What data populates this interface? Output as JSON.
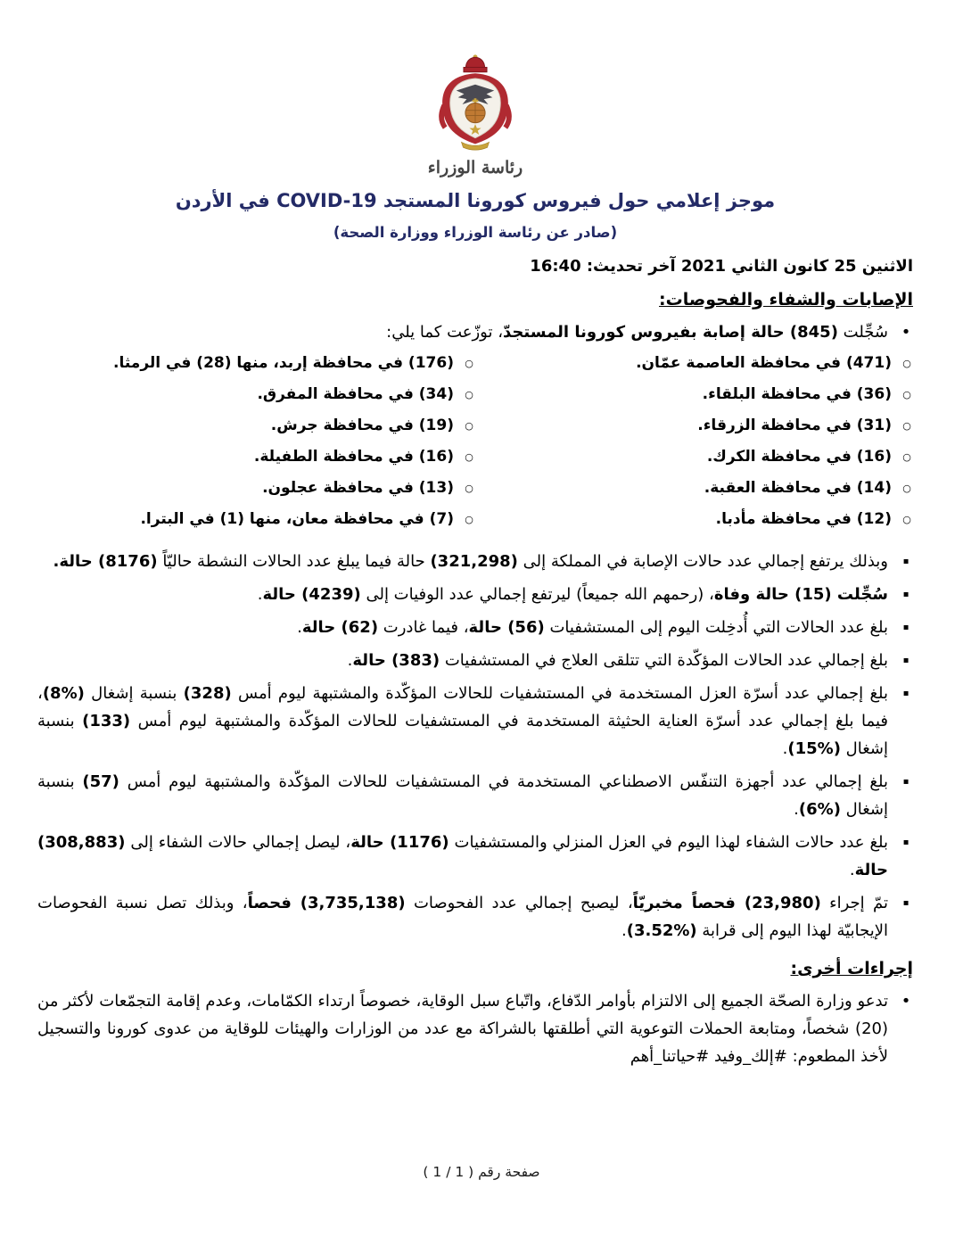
{
  "logo": {
    "icon": "jordan-coat-of-arms",
    "caption": "رئاسة الوزراء"
  },
  "header": {
    "title_segments": [
      {
        "t": "موجز إعلامي حول فيروس كورونا المستجد ",
        "b": true
      },
      {
        "t": "COVID-19",
        "b": true,
        "dir": "ltr"
      },
      {
        "t": " في الأردن",
        "b": true
      }
    ],
    "subtitle": "(صادر عن رئاسة الوزراء ووزارة الصحة)",
    "date_line": "الاثنين 25 كانون الثاني 2021 آخر تحديث: 16:40"
  },
  "sections": {
    "infections": {
      "heading": "الإصابات والشفاء والفحوصات:",
      "new_cases_intro": [
        {
          "t": "سُجِّلت ",
          "b": false
        },
        {
          "t": "(845) حالة إصابة بفيروس كورونا المستجدّ",
          "b": true
        },
        {
          "t": "، توزّعت كما يلي:",
          "b": false
        }
      ],
      "governorates_right": [
        "(471) في محافظة العاصمة عمّان.",
        "(36) في محافظة البلقاء.",
        "(31) في محافظة الزرقاء.",
        "(16) في محافظة الكرك.",
        "(14) في محافظة العقبة.",
        "(12) في محافظة مأدبا."
      ],
      "governorates_left": [
        "(176) في محافظة إربد، منها (28) في الرمثا.",
        "(34) في محافظة المفرق.",
        "(19) في محافظة جرش.",
        "(16) في محافظة الطفيلة.",
        "(13) في محافظة عجلون.",
        "(7) في محافظة معان، منها (1) في البترا."
      ],
      "bullets": [
        [
          {
            "t": "وبذلك يرتفع إجمالي عدد حالات الإصابة في المملكة إلى ",
            "b": false
          },
          {
            "t": "(321,298)",
            "b": true
          },
          {
            "t": " حالة فيما يبلغ عدد الحالات النشطة حاليّاً ",
            "b": false
          },
          {
            "t": "(8176) حالة.",
            "b": true
          }
        ],
        [
          {
            "t": "سُجِّلت (15) حالة وفاة",
            "b": true
          },
          {
            "t": "، (رحمهم الله جميعاً) ليرتفع إجمالي عدد الوفيات إلى ",
            "b": false
          },
          {
            "t": "(4239) حالة",
            "b": true
          },
          {
            "t": ".",
            "b": false
          }
        ],
        [
          {
            "t": "بلغ عدد الحالات التي أُدخِلت اليوم إلى المستشفيات ",
            "b": false
          },
          {
            "t": "(56) حالة",
            "b": true
          },
          {
            "t": "، فيما غادرت ",
            "b": false
          },
          {
            "t": "(62) حالة",
            "b": true
          },
          {
            "t": ".",
            "b": false
          }
        ],
        [
          {
            "t": "بلغ إجمالي عدد الحالات المؤكّدة التي تتلقى العلاج في المستشفيات ",
            "b": false
          },
          {
            "t": "(383) حالة",
            "b": true
          },
          {
            "t": ".",
            "b": false
          }
        ],
        [
          {
            "t": "بلغ إجمالي عدد أسرّة العزل المستخدمة في المستشفيات للحالات المؤكّدة والمشتبهة ليوم أمس ",
            "b": false
          },
          {
            "t": "(328)",
            "b": true
          },
          {
            "t": " بنسبة إشغال ",
            "b": false
          },
          {
            "t": "(%8)",
            "b": true
          },
          {
            "t": "، فيما بلغ إجمالي عدد أسرّة العناية الحثيثة المستخدمة في المستشفيات للحالات المؤكّدة والمشتبهة ليوم أمس ",
            "b": false
          },
          {
            "t": "(133)",
            "b": true
          },
          {
            "t": " بنسبة إشغال ",
            "b": false
          },
          {
            "t": "(%15)",
            "b": true
          },
          {
            "t": ".",
            "b": false
          }
        ],
        [
          {
            "t": "بلغ إجمالي عدد أجهزة التنفّس الاصطناعي المستخدمة في المستشفيات للحالات المؤكّدة والمشتبهة ليوم أمس ",
            "b": false
          },
          {
            "t": "(57)",
            "b": true
          },
          {
            "t": " بنسبة إشغال ",
            "b": false
          },
          {
            "t": "(%6)",
            "b": true
          },
          {
            "t": ".",
            "b": false
          }
        ],
        [
          {
            "t": "بلغ عدد حالات الشفاء لهذا اليوم في العزل المنزلي والمستشفيات ",
            "b": false
          },
          {
            "t": "(1176) حالة",
            "b": true
          },
          {
            "t": "، ليصل إجمالي حالات الشفاء إلى ",
            "b": false
          },
          {
            "t": "(308,883) حالة",
            "b": true
          },
          {
            "t": ".",
            "b": false
          }
        ],
        [
          {
            "t": "تمّ إجراء ",
            "b": false
          },
          {
            "t": "(23,980) فحصاً مخبريّاً",
            "b": true
          },
          {
            "t": "، ليصبح إجمالي عدد الفحوصات ",
            "b": false
          },
          {
            "t": "(3,735,138) فحصاً",
            "b": true
          },
          {
            "t": "، وبذلك تصل نسبة الفحوصات الإيجابيّة لهذا اليوم إلى قرابة ",
            "b": false
          },
          {
            "t": "(%3.52)",
            "b": true
          },
          {
            "t": ".",
            "b": false
          }
        ]
      ]
    },
    "other": {
      "heading": "إجراءات أخرى:",
      "bullets": [
        [
          {
            "t": "تدعو وزارة الصحّة الجميع إلى الالتزام بأوامر الدّفاع، واتّباع سبل الوقاية، خصوصاً ارتداء الكمّامات، وعدم إقامة التجمّعات لأكثر من (20) شخصاً، ومتابعة الحملات التوعوية التي أطلقتها بالشراكة مع عدد من الوزارات والهيئات للوقاية من عدوى كورونا والتسجيل لأخذ المطعوم: #إلك_وفيد #حياتنا_أهم",
            "b": false
          }
        ]
      ]
    }
  },
  "footer": {
    "page_label": "صفحة رقم ( 1 / 1 )"
  },
  "colors": {
    "title_navy": "#232a66",
    "body_text": "#000000",
    "crest_red": "#a8232b",
    "crest_gold": "#c9a43c",
    "crest_globe": "#c07a33"
  }
}
